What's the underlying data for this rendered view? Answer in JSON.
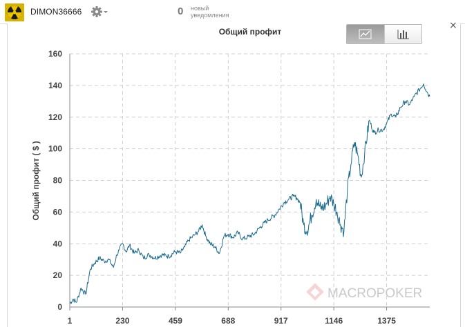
{
  "header": {
    "username": "DIMON36666",
    "settings_icon": "gear-icon",
    "notifications": {
      "count": "0",
      "label_line1": "новый",
      "label_line2": "уведомления"
    }
  },
  "panel": {
    "close_label": "×",
    "toggle": {
      "line_icon": "line-chart-icon",
      "bar_icon": "bar-chart-icon",
      "active": "line"
    }
  },
  "watermark": {
    "text": "MACROPOKER",
    "icon": "diamond-logo-icon"
  },
  "colors": {
    "series": "#1a6a8c",
    "grid": "#cfcfcf",
    "axis": "#888888"
  },
  "chart_data": {
    "type": "line",
    "title": "Общий профит",
    "ylabel": "Общий профит ( $ )",
    "xlabel": "",
    "ylim": [
      0,
      160
    ],
    "xlim": [
      1,
      1562
    ],
    "yticks": [
      0,
      20,
      40,
      60,
      80,
      100,
      120,
      140,
      160
    ],
    "xticks": [
      1,
      230,
      459,
      688,
      917,
      1146,
      1375
    ],
    "grid": true,
    "series": [
      {
        "x": [
          1,
          15,
          30,
          50,
          70,
          90,
          110,
          130,
          150,
          170,
          190,
          205,
          215,
          230,
          245,
          260,
          280,
          300,
          320,
          345,
          370,
          400,
          430,
          459,
          480,
          500,
          515,
          530,
          545,
          560,
          575,
          590,
          610,
          630,
          650,
          670,
          688,
          710,
          730,
          750,
          770,
          800,
          830,
          860,
          890,
          910,
          930,
          950,
          970,
          985,
          1000,
          1015,
          1030,
          1050,
          1070,
          1090,
          1110,
          1130,
          1146,
          1160,
          1175,
          1190,
          1205,
          1220,
          1235,
          1250,
          1265,
          1280,
          1300,
          1320,
          1340,
          1360,
          1375,
          1395,
          1415,
          1435,
          1455,
          1475,
          1495,
          1515,
          1535,
          1550,
          1562
        ],
        "y": [
          2,
          5,
          3,
          12,
          8,
          24,
          28,
          31,
          29,
          30,
          25,
          33,
          36,
          40,
          35,
          39,
          34,
          36,
          31,
          33,
          31,
          33,
          32,
          35,
          34,
          38,
          42,
          44,
          46,
          48,
          52,
          45,
          40,
          38,
          34,
          45,
          46,
          44,
          47,
          43,
          44,
          46,
          51,
          55,
          58,
          62,
          66,
          68,
          70,
          69,
          66,
          52,
          48,
          58,
          68,
          62,
          64,
          70,
          65,
          60,
          52,
          48,
          74,
          90,
          104,
          96,
          82,
          98,
          118,
          110,
          112,
          112,
          116,
          122,
          120,
          126,
          130,
          128,
          133,
          137,
          141,
          136,
          133
        ]
      }
    ]
  }
}
